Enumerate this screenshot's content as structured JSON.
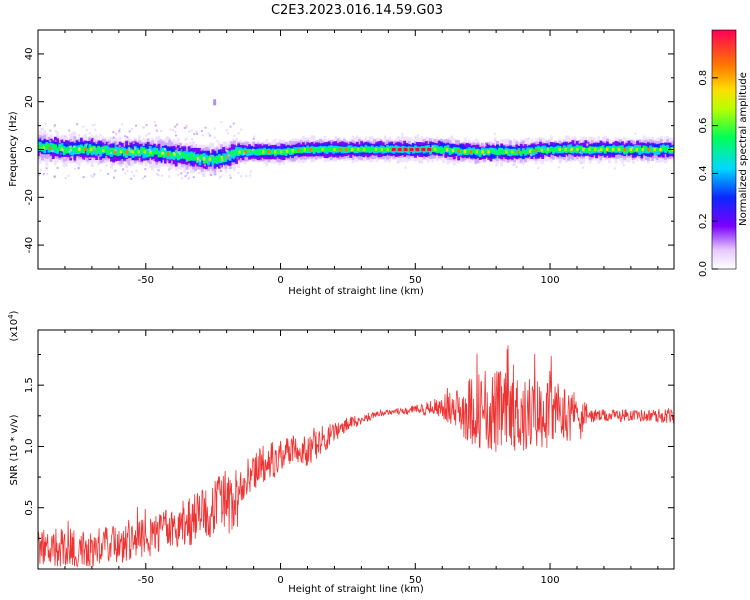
{
  "title": "C2E3.2023.016.14.59.G03",
  "colorbar": {
    "label": "Normalized spectral amplitude",
    "ticks": [
      "0.0",
      "0.2",
      "0.4",
      "0.6",
      "0.8"
    ],
    "range": [
      0,
      1
    ]
  },
  "chart_data": [
    {
      "type": "heatmap",
      "xlabel": "Height of straight line (km)",
      "ylabel": "Frequency (Hz)",
      "xlim": [
        -90,
        146
      ],
      "ylim": [
        -50,
        50
      ],
      "xticks": [
        -50,
        0,
        50,
        100
      ],
      "yticks": [
        -40,
        -20,
        0,
        20,
        40
      ],
      "series": [
        {
          "description": "frequency ridge center",
          "x": [
            -90,
            -80,
            -70,
            -60,
            -50,
            -40,
            -30,
            -25,
            -20,
            -15,
            -10,
            0,
            10,
            20,
            30,
            40,
            50,
            55,
            60,
            70,
            80,
            90,
            100,
            110,
            120,
            130,
            146
          ],
          "y": [
            1,
            0,
            0,
            -1,
            -1,
            -2,
            -4,
            -4,
            -3,
            -1,
            -1,
            -1,
            0,
            0,
            0,
            0,
            0,
            0,
            0,
            -1,
            -1,
            -1,
            0,
            0,
            0,
            0,
            0
          ]
        }
      ]
    },
    {
      "type": "line",
      "xlabel": "Height of straight line (km)",
      "ylabel": "SNR (10 * v/v)",
      "ylabel_exp": "(x10",
      "ylabel_exp_sup": "4",
      "ylabel_exp_close": ")",
      "xlim": [
        -90,
        146
      ],
      "ylim": [
        0,
        1.95
      ],
      "xticks": [
        -50,
        0,
        50,
        100
      ],
      "yticks": [
        0.5,
        1.0,
        1.5
      ],
      "ytick_labels": [
        "0.5",
        "1.0",
        "1.5"
      ],
      "series": [
        {
          "name": "SNR",
          "color": "#ee3333",
          "x": [
            -90,
            -80,
            -70,
            -60,
            -50,
            -45,
            -40,
            -35,
            -30,
            -25,
            -20,
            -17,
            -15,
            -10,
            -5,
            0,
            5,
            10,
            15,
            20,
            25,
            30,
            35,
            40,
            45,
            50,
            55,
            60,
            65,
            70,
            75,
            80,
            85,
            90,
            95,
            100,
            105,
            110,
            115,
            120,
            125,
            130,
            135,
            140,
            146
          ],
          "y": [
            0.18,
            0.17,
            0.18,
            0.2,
            0.25,
            0.3,
            0.32,
            0.38,
            0.42,
            0.52,
            0.6,
            0.35,
            0.7,
            0.8,
            0.88,
            0.92,
            1.0,
            0.95,
            1.05,
            1.12,
            1.18,
            1.22,
            1.26,
            1.28,
            1.29,
            1.3,
            1.31,
            1.32,
            1.3,
            1.3,
            1.3,
            1.28,
            1.28,
            1.27,
            1.27,
            1.27,
            1.27,
            1.26,
            1.25,
            1.25,
            1.25,
            1.26,
            1.25,
            1.25,
            1.25
          ],
          "noise_amplitude": [
            0.15,
            0.16,
            0.16,
            0.16,
            0.16,
            0.17,
            0.18,
            0.2,
            0.22,
            0.24,
            0.25,
            0.25,
            0.16,
            0.16,
            0.16,
            0.13,
            0.12,
            0.12,
            0.12,
            0.09,
            0.06,
            0.04,
            0.03,
            0.02,
            0.03,
            0.04,
            0.06,
            0.1,
            0.17,
            0.28,
            0.33,
            0.36,
            0.33,
            0.33,
            0.3,
            0.28,
            0.24,
            0.2,
            0.06,
            0.05,
            0.05,
            0.05,
            0.05,
            0.06,
            0.06
          ]
        }
      ]
    }
  ]
}
